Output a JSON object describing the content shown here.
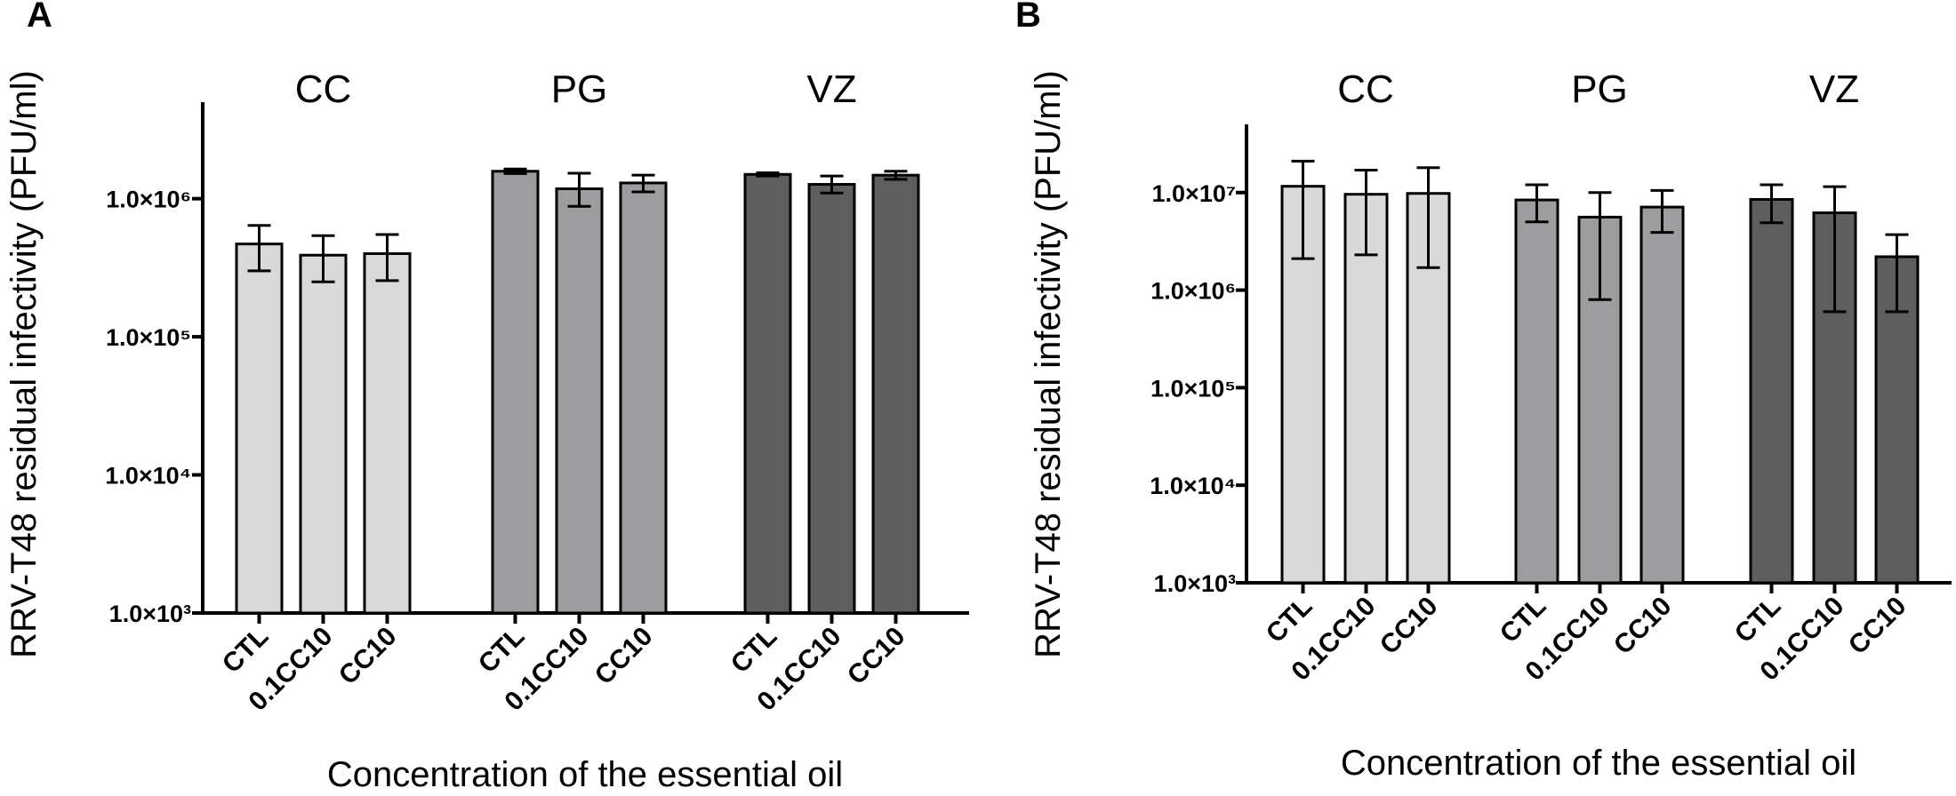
{
  "chart_data": [
    {
      "panel": "A",
      "type": "bar",
      "y_scale": "log",
      "ylim": [
        1000,
        5000000
      ],
      "xlabel": "Concentration of the essential oil",
      "ylabel": "RRV-T48 residual infectivity (PFU/ml)",
      "y_ticks": [
        {
          "value": 1000,
          "label": "1.0×10³"
        },
        {
          "value": 10000,
          "label": "1.0×10⁴"
        },
        {
          "value": 100000,
          "label": "1.0×10⁵"
        },
        {
          "value": 1000000,
          "label": "1.0×10⁶"
        }
      ],
      "groups": [
        {
          "name": "CC",
          "color": "#d9d9d9",
          "categories": [
            "CTL",
            "0.1CC10",
            "CC10"
          ],
          "values": [
            470000,
            390000,
            400000
          ],
          "err_low": [
            300000,
            250000,
            255000
          ],
          "err_high": [
            640000,
            540000,
            550000
          ]
        },
        {
          "name": "PG",
          "color": "#9d9d9f",
          "categories": [
            "CTL",
            "0.1CC10",
            "CC10"
          ],
          "values": [
            1580000,
            1180000,
            1300000
          ],
          "err_low": [
            1520000,
            880000,
            1120000
          ],
          "err_high": [
            1640000,
            1530000,
            1480000
          ]
        },
        {
          "name": "VZ",
          "color": "#5e5e5e",
          "categories": [
            "CTL",
            "0.1CC10",
            "CC10"
          ],
          "values": [
            1500000,
            1270000,
            1480000
          ],
          "err_low": [
            1460000,
            1100000,
            1380000
          ],
          "err_high": [
            1540000,
            1460000,
            1580000
          ]
        }
      ]
    },
    {
      "panel": "B",
      "type": "bar",
      "y_scale": "log",
      "ylim": [
        1000,
        50000000
      ],
      "xlabel": "Concentration of the essential oil",
      "ylabel": "RRV-T48 residual infectivity (PFU/ml)",
      "y_ticks": [
        {
          "value": 1000,
          "label": "1.0×10³"
        },
        {
          "value": 10000,
          "label": "1.0×10⁴"
        },
        {
          "value": 100000,
          "label": "1.0×10⁵"
        },
        {
          "value": 1000000,
          "label": "1.0×10⁶"
        },
        {
          "value": 10000000,
          "label": "1.0×10⁷"
        }
      ],
      "groups": [
        {
          "name": "CC",
          "color": "#d9d9d9",
          "categories": [
            "CTL",
            "0.1CC10",
            "CC10"
          ],
          "values": [
            11600000,
            9600000,
            9800000
          ],
          "err_low": [
            2100000,
            2300000,
            1700000
          ],
          "err_high": [
            21000000,
            17000000,
            18000000
          ]
        },
        {
          "name": "PG",
          "color": "#9d9d9f",
          "categories": [
            "CTL",
            "0.1CC10",
            "CC10"
          ],
          "values": [
            8400000,
            5600000,
            7100000
          ],
          "err_low": [
            5000000,
            800000,
            3900000
          ],
          "err_high": [
            12000000,
            10000000,
            10500000
          ]
        },
        {
          "name": "VZ",
          "color": "#5e5e5e",
          "categories": [
            "CTL",
            "0.1CC10",
            "CC10"
          ],
          "values": [
            8500000,
            6200000,
            2200000
          ],
          "err_low": [
            4900000,
            600000,
            600000
          ],
          "err_high": [
            12000000,
            11500000,
            3700000
          ]
        }
      ]
    }
  ]
}
